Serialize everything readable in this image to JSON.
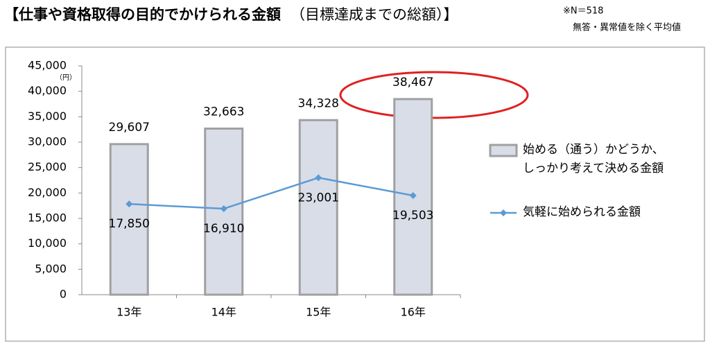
{
  "chart_data": {
    "type": "bar_line",
    "title": "【仕事や資格取得の目的でかけられる金額",
    "subtitle": "（目標達成までの総額）】",
    "notes": [
      "※N＝518",
      "無答・異常値を除く平均値"
    ],
    "y_unit": "（円）",
    "categories": [
      "13年",
      "14年",
      "15年",
      "16年"
    ],
    "series": [
      {
        "name": "始める（通う）かどうか、しっかり考えて決める金額",
        "type": "bar",
        "color": "#d9dde8",
        "values": [
          29607,
          32663,
          34328,
          38467
        ],
        "value_labels": [
          "29,607",
          "32,663",
          "34,328",
          "38,467"
        ]
      },
      {
        "name": "気軽に始められる金額",
        "type": "line",
        "color": "#5b9bd5",
        "values": [
          17850,
          16910,
          23001,
          19503
        ],
        "value_labels": [
          "17,850",
          "16,910",
          "23,001",
          "19,503"
        ]
      }
    ],
    "ylim": [
      0,
      45000
    ],
    "yticks": [
      0,
      {
        "value": 5000,
        "label": "5,000"
      },
      {
        "value": 10000,
        "label": "10,000"
      },
      {
        "value": 15000,
        "label": "15,000"
      },
      {
        "value": 20000,
        "label": "20,000"
      },
      {
        "value": 25000,
        "label": "25,000"
      },
      {
        "value": 30000,
        "label": "30,000"
      },
      {
        "value": 35000,
        "label": "35,000"
      },
      {
        "value": 40000,
        "label": "40,000"
      },
      {
        "value": 45000,
        "label": "45,000"
      }
    ]
  }
}
